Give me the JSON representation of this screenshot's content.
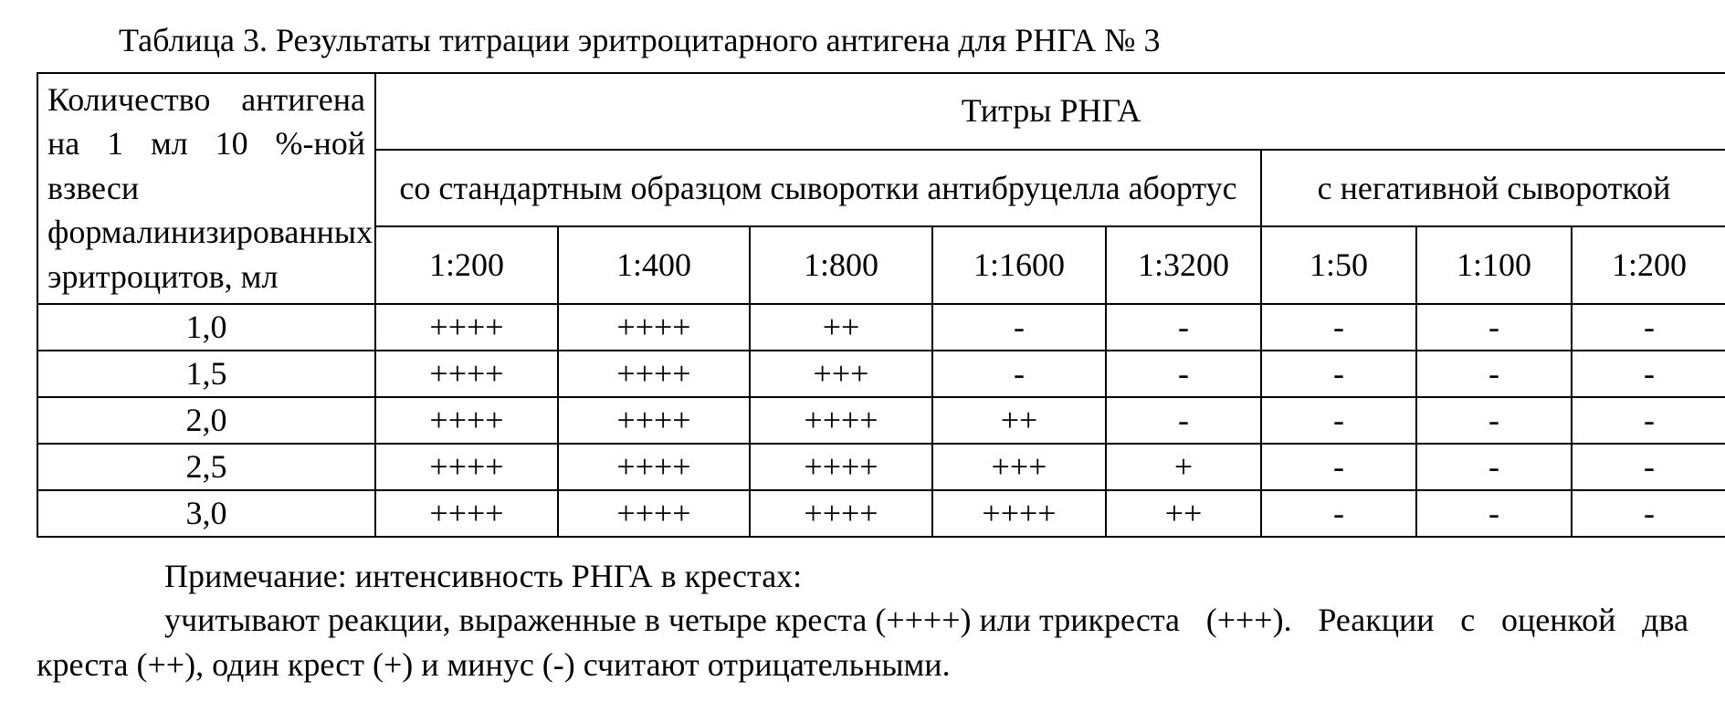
{
  "caption": "Таблица 3. Результаты титрации эритроцитарного антигена для РНГА № 3",
  "header": {
    "rowhead": "Количество антигена на 1 мл 10 %-ной взвеси формалинизированных эритроцитов, мл",
    "titres_group": "Титры РНГА",
    "standard_group": "со стандартным образцом сыворотки антибруцелла абортус",
    "negative_group": "с негативной сывороткой",
    "standard_cols": [
      "1:200",
      "1:400",
      "1:800",
      "1:1600",
      "1:3200"
    ],
    "negative_cols": [
      "1:50",
      "1:100",
      "1:200"
    ]
  },
  "rows": [
    {
      "amount": "1,0",
      "cells": [
        "++++",
        "++++",
        "++",
        "-",
        "-",
        "-",
        "-",
        "-"
      ]
    },
    {
      "amount": "1,5",
      "cells": [
        "++++",
        "++++",
        "+++",
        "-",
        "-",
        "-",
        "-",
        "-"
      ]
    },
    {
      "amount": "2,0",
      "cells": [
        "++++",
        "++++",
        "++++",
        "++",
        "-",
        "-",
        "-",
        "-"
      ]
    },
    {
      "amount": "2,5",
      "cells": [
        "++++",
        "++++",
        "++++",
        "+++",
        "+",
        "-",
        "-",
        "-"
      ]
    },
    {
      "amount": "3,0",
      "cells": [
        "++++",
        "++++",
        "++++",
        "++++",
        "++",
        "-",
        "-",
        "-"
      ]
    }
  ],
  "note": {
    "line1": "Примечание: интенсивность РНГА в крестах:",
    "body_first": "учитывают реакции, выраженные в четыре креста (++++) или три ",
    "body_rest": "креста (+++). Реакции с оценкой два креста (++), один крест (+) и минус (-) считают отрицательными."
  }
}
